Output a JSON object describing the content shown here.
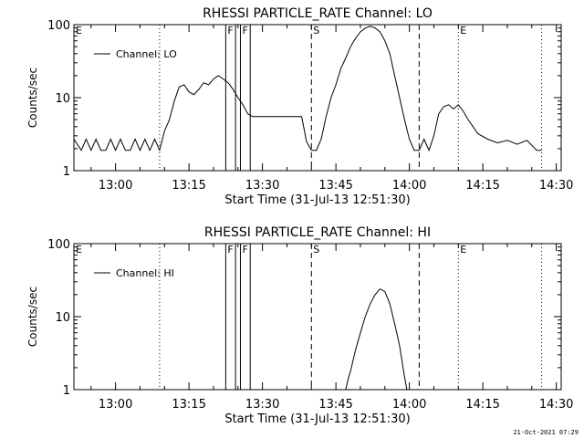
{
  "footer_timestamp": "21-Oct-2021 07:29",
  "colors": {
    "foreground": "#000000",
    "background": "#ffffff"
  },
  "chart_data": [
    {
      "type": "line",
      "title": "RHESSI PARTICLE_RATE Channel: LO",
      "xlabel": "Start Time (31-Jul-13 12:51:30)",
      "ylabel": "Counts/sec",
      "yscale": "log",
      "ylim": [
        1,
        100
      ],
      "xlim": [
        "12:51:30",
        "14:31:00"
      ],
      "x_ticks": [
        "13:00",
        "13:15",
        "13:30",
        "13:45",
        "14:00",
        "14:15",
        "14:30"
      ],
      "y_ticks": [
        "1",
        "10",
        "100"
      ],
      "legend": {
        "position": "top-left",
        "entries": [
          "Channel: LO"
        ]
      },
      "markers": [
        {
          "label": "E",
          "time": "12:51:30",
          "style": "dotted"
        },
        {
          "label": "",
          "time": "13:09:00",
          "style": "dotted"
        },
        {
          "label": "F",
          "time": "13:22:30",
          "style": "solid"
        },
        {
          "label": "",
          "time": "13:24:30",
          "style": "solid"
        },
        {
          "label": "F",
          "time": "13:25:30",
          "style": "solid"
        },
        {
          "label": "",
          "time": "13:27:30",
          "style": "solid"
        },
        {
          "label": "S",
          "time": "13:40:00",
          "style": "dashed"
        },
        {
          "label": "",
          "time": "14:02:00",
          "style": "dashed"
        },
        {
          "label": "E",
          "time": "14:10:00",
          "style": "dotted"
        },
        {
          "label": "",
          "time": "14:27:00",
          "style": "dotted"
        }
      ],
      "series": [
        {
          "name": "Channel: LO",
          "x": [
            "12:51:30",
            "12:53:00",
            "12:54:00",
            "12:55:00",
            "12:56:00",
            "12:57:00",
            "12:58:00",
            "12:59:00",
            "13:00:00",
            "13:01:00",
            "13:02:00",
            "13:03:00",
            "13:04:00",
            "13:05:00",
            "13:06:00",
            "13:07:00",
            "13:08:00",
            "13:09:00",
            "13:10:00",
            "13:11:00",
            "13:12:00",
            "13:13:00",
            "13:14:00",
            "13:15:00",
            "13:16:00",
            "13:17:00",
            "13:18:00",
            "13:19:00",
            "13:20:00",
            "13:21:00",
            "13:22:00",
            "13:23:00",
            "13:24:00",
            "13:25:00",
            "13:26:00",
            "13:27:00",
            "13:28:00",
            "13:29:00",
            "13:30:00",
            "13:32:00",
            "13:34:00",
            "13:36:00",
            "13:38:00",
            "13:39:00",
            "13:40:00",
            "13:41:00",
            "13:42:00",
            "13:43:00",
            "13:44:00",
            "13:45:00",
            "13:46:00",
            "13:47:00",
            "13:48:00",
            "13:49:00",
            "13:50:00",
            "13:51:00",
            "13:52:00",
            "13:53:00",
            "13:54:00",
            "13:55:00",
            "13:56:00",
            "13:57:00",
            "13:58:00",
            "13:59:00",
            "14:00:00",
            "14:01:00",
            "14:02:00",
            "14:03:00",
            "14:04:00",
            "14:05:00",
            "14:06:00",
            "14:07:00",
            "14:08:00",
            "14:09:00",
            "14:10:00",
            "14:11:00",
            "14:12:00",
            "14:13:00",
            "14:14:00",
            "14:16:00",
            "14:18:00",
            "14:20:00",
            "14:22:00",
            "14:24:00",
            "14:26:00",
            "14:27:00"
          ],
          "values": [
            2.7,
            1.9,
            2.7,
            1.9,
            2.7,
            1.9,
            1.9,
            2.7,
            1.9,
            2.7,
            1.9,
            1.9,
            2.7,
            1.9,
            2.7,
            1.9,
            2.7,
            1.9,
            3.5,
            5.0,
            9.0,
            14,
            15,
            12,
            11,
            13,
            16,
            15,
            18,
            20,
            18,
            16,
            13,
            10,
            8,
            6,
            5.5,
            5.5,
            5.5,
            5.5,
            5.5,
            5.5,
            5.5,
            2.5,
            1.9,
            1.9,
            2.7,
            5.5,
            10,
            15,
            25,
            35,
            50,
            65,
            80,
            90,
            95,
            90,
            80,
            60,
            40,
            20,
            10,
            5,
            2.7,
            1.9,
            1.9,
            2.7,
            1.9,
            3.0,
            6.0,
            7.5,
            8.0,
            7.0,
            8.0,
            6.5,
            5.0,
            4.0,
            3.2,
            2.7,
            2.4,
            2.6,
            2.3,
            2.6,
            1.9,
            1.9
          ]
        }
      ]
    },
    {
      "type": "line",
      "title": "RHESSI PARTICLE_RATE Channel: HI",
      "xlabel": "Start Time (31-Jul-13 12:51:30)",
      "ylabel": "Counts/sec",
      "yscale": "log",
      "ylim": [
        1,
        100
      ],
      "xlim": [
        "12:51:30",
        "14:31:00"
      ],
      "x_ticks": [
        "13:00",
        "13:15",
        "13:30",
        "13:45",
        "14:00",
        "14:15",
        "14:30"
      ],
      "y_ticks": [
        "1",
        "10",
        "100"
      ],
      "legend": {
        "position": "top-left",
        "entries": [
          "Channel: HI"
        ]
      },
      "markers": [
        {
          "label": "E",
          "time": "12:51:30",
          "style": "dotted"
        },
        {
          "label": "",
          "time": "13:09:00",
          "style": "dotted"
        },
        {
          "label": "F",
          "time": "13:22:30",
          "style": "solid"
        },
        {
          "label": "",
          "time": "13:24:30",
          "style": "solid"
        },
        {
          "label": "F",
          "time": "13:25:30",
          "style": "solid"
        },
        {
          "label": "",
          "time": "13:27:30",
          "style": "solid"
        },
        {
          "label": "S",
          "time": "13:40:00",
          "style": "dashed"
        },
        {
          "label": "",
          "time": "14:02:00",
          "style": "dashed"
        },
        {
          "label": "E",
          "time": "14:10:00",
          "style": "dotted"
        },
        {
          "label": "",
          "time": "14:27:00",
          "style": "dotted"
        }
      ],
      "series": [
        {
          "name": "Channel: HI",
          "x": [
            "13:47:00",
            "13:47:30",
            "13:48:00",
            "13:49:00",
            "13:50:00",
            "13:51:00",
            "13:52:00",
            "13:53:00",
            "13:54:00",
            "13:55:00",
            "13:56:00",
            "13:57:00",
            "13:58:00",
            "13:59:00",
            "13:59:30"
          ],
          "values": [
            1.0,
            1.4,
            1.8,
            3.5,
            6,
            10,
            15,
            20,
            24,
            22,
            15,
            8,
            4,
            1.5,
            1.0
          ]
        }
      ]
    }
  ]
}
